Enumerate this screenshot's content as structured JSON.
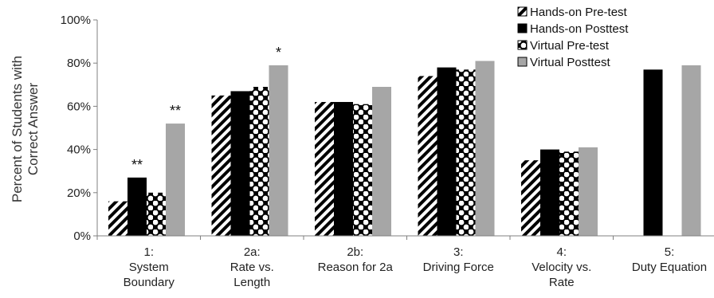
{
  "chart_data": {
    "type": "bar",
    "ylabel": [
      "Percent of Students with",
      "Correct Answer"
    ],
    "ylim": [
      0,
      100
    ],
    "yticks": [
      "0%",
      "20%",
      "40%",
      "60%",
      "80%",
      "100%"
    ],
    "categories": [
      [
        "1:",
        "System",
        "Boundary"
      ],
      [
        "2a:",
        "Rate vs.",
        "Length"
      ],
      [
        "2b:",
        "Reason for 2a"
      ],
      [
        "3:",
        "Driving Force"
      ],
      [
        "4:",
        "Velocity vs.",
        "Rate"
      ],
      [
        "5:",
        "Duty Equation"
      ]
    ],
    "series": [
      {
        "name": "Hands-on Pre-test",
        "pattern": "diagonal-hatch",
        "values": [
          16,
          65,
          62,
          74,
          35,
          null
        ]
      },
      {
        "name": "Hands-on Posttest",
        "pattern": "solid-black",
        "values": [
          27,
          67,
          62,
          78,
          40,
          77
        ]
      },
      {
        "name": "Virtual Pre-test",
        "pattern": "checkered-dots",
        "values": [
          20,
          69,
          61,
          77,
          39,
          null
        ]
      },
      {
        "name": "Virtual Posttest",
        "pattern": "solid-gray",
        "values": [
          52,
          79,
          69,
          81,
          41,
          79
        ]
      }
    ],
    "annotations": [
      {
        "category": 0,
        "series": 1,
        "text": "**"
      },
      {
        "category": 0,
        "series": 3,
        "text": "**"
      },
      {
        "category": 1,
        "series": 3,
        "text": "*"
      }
    ],
    "legend": "top-right",
    "grid": false
  },
  "colors": {
    "hatch_stroke": "#000000",
    "solid_black": "#000000",
    "solid_gray": "#a6a6a6",
    "axis": "#808080"
  }
}
